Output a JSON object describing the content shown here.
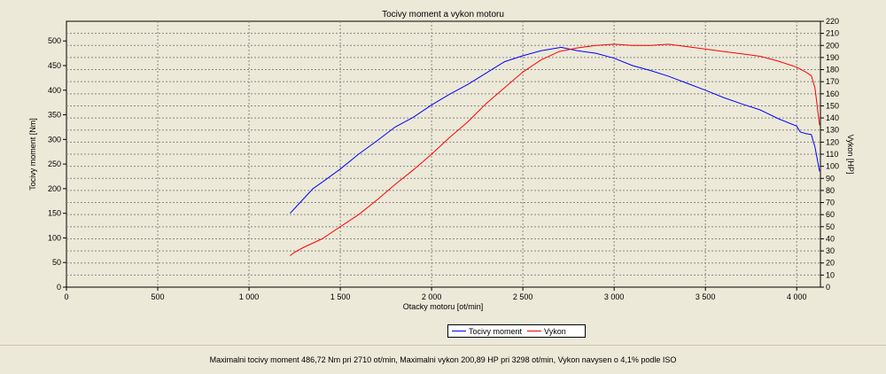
{
  "chart_data": {
    "type": "line",
    "title": "Tocivy moment a vykon motoru",
    "xlabel": "Otacky motoru [ot/min]",
    "ylabel": "Tocivy moment [Nm]",
    "y2label": "Vykon [HP]",
    "xlim": [
      0,
      4130
    ],
    "ylim": [
      0,
      540
    ],
    "y2lim": [
      0,
      220
    ],
    "grid": true,
    "x_ticks": [
      0,
      500,
      1000,
      1500,
      2000,
      2500,
      3000,
      3500,
      4000
    ],
    "x_tick_labels": [
      "0",
      "500",
      "1 000",
      "1 500",
      "2 000",
      "2 500",
      "3 000",
      "3 500",
      "4 000"
    ],
    "y_ticks": [
      0,
      50,
      100,
      150,
      200,
      250,
      300,
      350,
      400,
      450,
      500
    ],
    "y2_ticks": [
      0,
      10,
      20,
      30,
      40,
      50,
      60,
      70,
      80,
      90,
      100,
      110,
      120,
      130,
      140,
      150,
      160,
      170,
      180,
      190,
      200,
      210,
      220
    ],
    "legend_position": "bottom-center",
    "series": [
      {
        "name": "Tocivy moment",
        "axis": "left",
        "color": "#0000ff",
        "x": [
          1225,
          1250,
          1300,
          1350,
          1400,
          1500,
          1600,
          1700,
          1800,
          1900,
          2000,
          2100,
          2200,
          2300,
          2400,
          2500,
          2600,
          2710,
          2800,
          2900,
          3000,
          3100,
          3200,
          3300,
          3400,
          3500,
          3600,
          3700,
          3800,
          3900,
          4000,
          4020,
          4050,
          4080,
          4100,
          4125
        ],
        "y": [
          150,
          160,
          180,
          200,
          213,
          240,
          270,
          297,
          325,
          345,
          370,
          392,
          412,
          435,
          458,
          470,
          480,
          487,
          480,
          475,
          465,
          450,
          440,
          428,
          414,
          400,
          385,
          372,
          360,
          342,
          327,
          315,
          312,
          310,
          285,
          235
        ]
      },
      {
        "name": "Vykon",
        "axis": "right",
        "color": "#ff0000",
        "x": [
          1225,
          1250,
          1300,
          1400,
          1500,
          1600,
          1700,
          1800,
          1900,
          2000,
          2100,
          2200,
          2300,
          2400,
          2500,
          2600,
          2700,
          2800,
          2900,
          3000,
          3100,
          3200,
          3298,
          3400,
          3500,
          3600,
          3700,
          3800,
          3900,
          4000,
          4050,
          4080,
          4100,
          4125
        ],
        "y": [
          26,
          29,
          33,
          40,
          50,
          60,
          72,
          85,
          97,
          110,
          124,
          137,
          152,
          165,
          178,
          188,
          195,
          198,
          200,
          201,
          200,
          200,
          201,
          199,
          197,
          195,
          193,
          191,
          187,
          182,
          178,
          175,
          165,
          134
        ]
      }
    ]
  },
  "status": {
    "summary": "Maximalni tocivy moment 486,72 Nm pri 2710 ot/min,  Maximalni vykon 200,89 HP pri 3298 ot/min,  Vykon navysen o 4,1% podle ISO"
  }
}
